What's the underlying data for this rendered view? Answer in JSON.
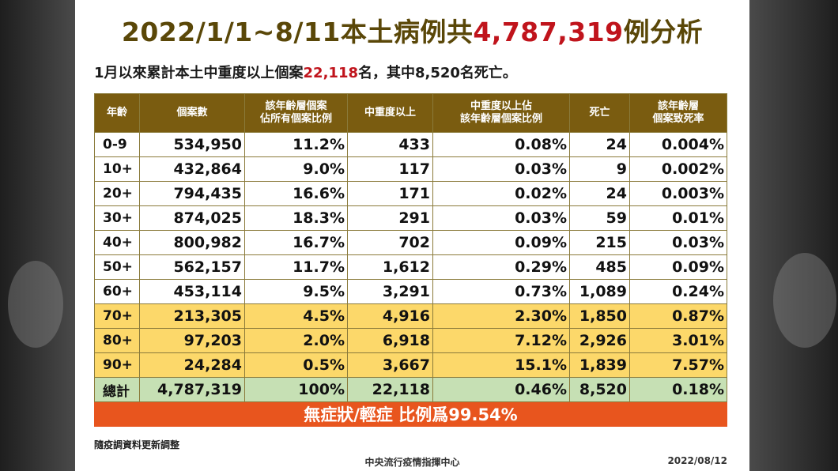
{
  "title": {
    "prefix": "2022/1/1~8/11本土病例共",
    "highlight": "4,787,319",
    "suffix": "例分析"
  },
  "subtitle": {
    "prefix": "1月以來累計本土中重度以上個案",
    "highlight": "22,118",
    "suffix": "名，其中8,520名死亡。"
  },
  "chart_data": {
    "type": "table",
    "columns": [
      "年齡",
      "個案數",
      "該年齡層個案\n佔所有個案比例",
      "中重度以上",
      "中重度以上佔\n該年齡層個案比例",
      "死亡",
      "該年齡層\n個案致死率"
    ],
    "rows": [
      [
        "0-9",
        "534,950",
        "11.2%",
        "433",
        "0.08%",
        "24",
        "0.004%"
      ],
      [
        "10+",
        "432,864",
        "9.0%",
        "117",
        "0.03%",
        "9",
        "0.002%"
      ],
      [
        "20+",
        "794,435",
        "16.6%",
        "171",
        "0.02%",
        "24",
        "0.003%"
      ],
      [
        "30+",
        "874,025",
        "18.3%",
        "291",
        "0.03%",
        "59",
        "0.01%"
      ],
      [
        "40+",
        "800,982",
        "16.7%",
        "702",
        "0.09%",
        "215",
        "0.03%"
      ],
      [
        "50+",
        "562,157",
        "11.7%",
        "1,612",
        "0.29%",
        "485",
        "0.09%"
      ],
      [
        "60+",
        "453,114",
        "9.5%",
        "3,291",
        "0.73%",
        "1,089",
        "0.24%"
      ],
      [
        "70+",
        "213,305",
        "4.5%",
        "4,916",
        "2.30%",
        "1,850",
        "0.87%"
      ],
      [
        "80+",
        "97,203",
        "2.0%",
        "6,918",
        "7.12%",
        "2,926",
        "3.01%"
      ],
      [
        "90+",
        "24,284",
        "0.5%",
        "3,667",
        "15.1%",
        "1,839",
        "7.57%"
      ]
    ],
    "highlighted_rows": [
      "70+",
      "80+",
      "90+"
    ],
    "total": [
      "總計",
      "4,787,319",
      "100%",
      "22,118",
      "0.46%",
      "8,520",
      "0.18%"
    ],
    "banner": "無症狀/輕症 比例爲99.54%"
  },
  "note": "隨疫調資料更新調整",
  "footer": {
    "source": "中央流行疫情指揮中心",
    "date": "2022/08/12"
  },
  "colors": {
    "title": "#5a4708",
    "highlight_red": "#c0141c",
    "header_bg": "#7a5c10",
    "highlight_row_bg": "#fcd86a",
    "total_row_bg": "#c6e0b4",
    "banner_bg": "#e8551e"
  }
}
